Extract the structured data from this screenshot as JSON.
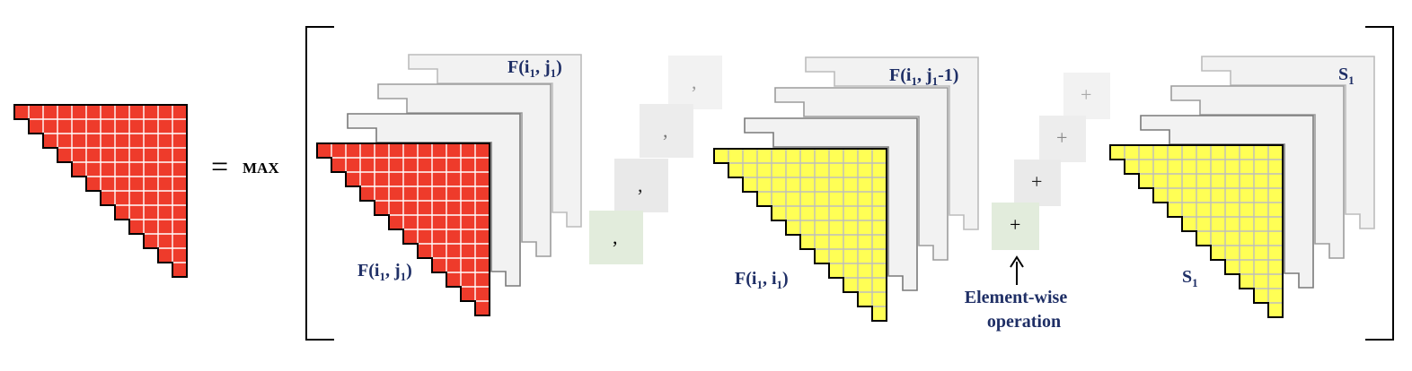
{
  "equation": {
    "equals": "=",
    "operator": "MAX"
  },
  "groups": [
    {
      "id": "red",
      "fill": "#ee3b2b",
      "grid": "#ffffff",
      "back_label": {
        "main": "F(i",
        "s1": "1",
        "mid": ", j",
        "s2": "1",
        "tail": ")"
      },
      "front_label": {
        "main": "F(i",
        "s1": "1",
        "mid": ", j",
        "s2": "1",
        "tail": ")"
      }
    },
    {
      "id": "yellow1",
      "fill": "#ffff55",
      "grid": "#bdbdbd",
      "back_label": {
        "main": "F(i",
        "s1": "1",
        "mid": ", j",
        "s2": "1",
        "tail": "-1)"
      },
      "front_label": {
        "main": "F(i",
        "s1": "1",
        "mid": ", i",
        "s2": "1",
        "tail": ")"
      }
    },
    {
      "id": "yellow2",
      "fill": "#ffff55",
      "grid": "#bdbdbd",
      "back_label": {
        "main": "S",
        "s1": "1",
        "mid": "",
        "s2": "",
        "tail": ""
      },
      "front_label": {
        "main": "S",
        "s1": "1",
        "mid": "",
        "s2": "",
        "tail": ""
      }
    }
  ],
  "separators": {
    "comma": ",",
    "plus": "+"
  },
  "annotation": {
    "line1": "Element-wise",
    "line2": "operation"
  },
  "colors": {
    "label": "#1f2f66",
    "panel": "#f2f2f2",
    "token_box": "#eeeeee",
    "token_box_front": "#e2ecdc"
  }
}
